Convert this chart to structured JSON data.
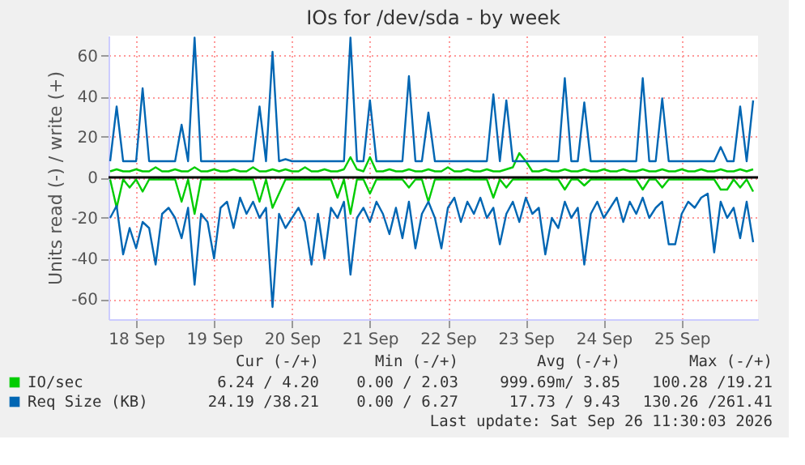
{
  "chart_data": {
    "type": "line",
    "title": "IOs for /dev/sda - by week",
    "ylabel": "Units read (-) / write (+)",
    "x": [
      "2026-09-18T04:00",
      "2026-09-18T06:00",
      "2026-09-18T08:00",
      "2026-09-18T10:00",
      "2026-09-18T12:00",
      "2026-09-18T14:00",
      "2026-09-18T16:00",
      "2026-09-18T18:00",
      "2026-09-18T20:00",
      "2026-09-18T22:00",
      "2026-09-19T00:00",
      "2026-09-19T02:00",
      "2026-09-19T04:00",
      "2026-09-19T06:00",
      "2026-09-19T08:00",
      "2026-09-19T10:00",
      "2026-09-19T12:00",
      "2026-09-19T14:00",
      "2026-09-19T16:00",
      "2026-09-19T18:00",
      "2026-09-19T20:00",
      "2026-09-19T22:00",
      "2026-09-20T00:00",
      "2026-09-20T02:00",
      "2026-09-20T04:00",
      "2026-09-20T06:00",
      "2026-09-20T08:00",
      "2026-09-20T10:00",
      "2026-09-20T12:00",
      "2026-09-20T14:00",
      "2026-09-20T16:00",
      "2026-09-20T18:00",
      "2026-09-20T20:00",
      "2026-09-20T22:00",
      "2026-09-21T00:00",
      "2026-09-21T02:00",
      "2026-09-21T04:00",
      "2026-09-21T06:00",
      "2026-09-21T08:00",
      "2026-09-21T10:00",
      "2026-09-21T12:00",
      "2026-09-21T14:00",
      "2026-09-21T16:00",
      "2026-09-21T18:00",
      "2026-09-21T20:00",
      "2026-09-21T22:00",
      "2026-09-22T00:00",
      "2026-09-22T02:00",
      "2026-09-22T04:00",
      "2026-09-22T06:00",
      "2026-09-22T08:00",
      "2026-09-22T10:00",
      "2026-09-22T12:00",
      "2026-09-22T14:00",
      "2026-09-22T16:00",
      "2026-09-22T18:00",
      "2026-09-22T20:00",
      "2026-09-22T22:00",
      "2026-09-23T00:00",
      "2026-09-23T02:00",
      "2026-09-23T04:00",
      "2026-09-23T06:00",
      "2026-09-23T08:00",
      "2026-09-23T10:00",
      "2026-09-23T12:00",
      "2026-09-23T14:00",
      "2026-09-23T16:00",
      "2026-09-23T18:00",
      "2026-09-23T20:00",
      "2026-09-23T22:00",
      "2026-09-24T00:00",
      "2026-09-24T02:00",
      "2026-09-24T04:00",
      "2026-09-24T06:00",
      "2026-09-24T08:00",
      "2026-09-24T10:00",
      "2026-09-24T12:00",
      "2026-09-24T14:00",
      "2026-09-24T16:00",
      "2026-09-24T18:00",
      "2026-09-24T20:00",
      "2026-09-24T22:00",
      "2026-09-25T00:00",
      "2026-09-25T02:00",
      "2026-09-25T04:00",
      "2026-09-25T06:00",
      "2026-09-25T08:00",
      "2026-09-25T10:00",
      "2026-09-25T12:00",
      "2026-09-25T14:00",
      "2026-09-25T16:00",
      "2026-09-25T18:00",
      "2026-09-25T20:00",
      "2026-09-25T22:00",
      "2026-09-26T00:00",
      "2026-09-26T02:00",
      "2026-09-26T04:00",
      "2026-09-26T06:00",
      "2026-09-26T08:00",
      "2026-09-26T10:00"
    ],
    "xlim": [
      "2026-09-18T03:30",
      "2026-09-26T11:30"
    ],
    "xticks": [
      {
        "value": "2026-09-18T12:00",
        "label": "18 Sep"
      },
      {
        "value": "2026-09-19T12:00",
        "label": "19 Sep"
      },
      {
        "value": "2026-09-20T12:00",
        "label": "20 Sep"
      },
      {
        "value": "2026-09-21T12:00",
        "label": "21 Sep"
      },
      {
        "value": "2026-09-22T12:00",
        "label": "22 Sep"
      },
      {
        "value": "2026-09-23T12:00",
        "label": "23 Sep"
      },
      {
        "value": "2026-09-24T12:00",
        "label": "24 Sep"
      },
      {
        "value": "2026-09-25T12:00",
        "label": "25 Sep"
      }
    ],
    "ylim": [
      -70,
      70
    ],
    "yticks": [
      -60,
      -40,
      -20,
      0,
      20,
      40,
      60
    ],
    "grid": true,
    "legend": "bottom",
    "line_style": "solid",
    "marker": "none",
    "ref_lines": [
      {
        "axis": "y",
        "value": 0,
        "color": "#000000"
      }
    ],
    "series": [
      {
        "name": "IO/sec",
        "color": "#00cc00",
        "values": [
          3,
          4,
          3,
          3,
          4,
          3,
          3,
          5,
          3,
          3,
          4,
          3,
          3,
          5,
          3,
          3,
          4,
          3,
          3,
          4,
          3,
          3,
          5,
          3,
          3,
          4,
          3,
          4,
          3,
          3,
          5,
          3,
          3,
          4,
          3,
          3,
          4,
          10,
          4,
          3,
          10,
          3,
          3,
          4,
          3,
          3,
          4,
          3,
          3,
          4,
          3,
          3,
          5,
          3,
          3,
          4,
          3,
          3,
          4,
          3,
          3,
          4,
          5,
          12,
          8,
          3,
          3,
          4,
          3,
          3,
          4,
          3,
          3,
          4,
          3,
          3,
          4,
          3,
          3,
          4,
          3,
          3,
          4,
          3,
          3,
          4,
          3,
          3,
          4,
          3,
          3,
          4,
          3,
          3,
          4,
          3,
          3,
          4,
          3,
          4
        ]
      },
      {
        "color": "#00cc00",
        "values": [
          -1,
          -15,
          -1,
          -5,
          -1,
          -7,
          -1,
          -1,
          -1,
          -1,
          -1,
          -12,
          -1,
          -18,
          -1,
          -1,
          -1,
          -1,
          -1,
          -1,
          -1,
          -1,
          -1,
          -12,
          -1,
          -15,
          -8,
          -1,
          -1,
          -1,
          -1,
          -1,
          -1,
          -1,
          -1,
          -10,
          -1,
          -18,
          -1,
          -1,
          -8,
          -1,
          -1,
          -1,
          -1,
          -1,
          -5,
          -1,
          -1,
          -12,
          -1,
          -1,
          -1,
          -1,
          -1,
          -1,
          -1,
          -1,
          -1,
          -10,
          -1,
          -5,
          -1,
          -1,
          -1,
          -1,
          -1,
          -1,
          -1,
          -1,
          -6,
          -1,
          -1,
          -4,
          -1,
          -1,
          -1,
          -1,
          -1,
          -1,
          -1,
          -1,
          -6,
          -1,
          -1,
          -5,
          -1,
          -1,
          -1,
          -1,
          -1,
          -1,
          -1,
          -1,
          -6,
          -6,
          -1,
          -5,
          -1,
          -7
        ]
      },
      {
        "name": "Req Size (KB)",
        "color": "#0066b3",
        "values": [
          8,
          35,
          8,
          8,
          8,
          44,
          8,
          8,
          8,
          8,
          8,
          26,
          8,
          69,
          8,
          8,
          8,
          8,
          8,
          8,
          8,
          8,
          8,
          35,
          8,
          62,
          8,
          9,
          8,
          8,
          8,
          8,
          8,
          8,
          8,
          8,
          8,
          69,
          8,
          8,
          38,
          8,
          8,
          8,
          8,
          8,
          50,
          8,
          8,
          32,
          8,
          8,
          8,
          8,
          8,
          8,
          8,
          8,
          8,
          41,
          8,
          38,
          8,
          8,
          8,
          8,
          8,
          8,
          8,
          8,
          49,
          8,
          8,
          37,
          8,
          8,
          8,
          8,
          8,
          8,
          8,
          8,
          49,
          8,
          8,
          39,
          8,
          8,
          8,
          8,
          8,
          8,
          8,
          8,
          15,
          8,
          8,
          35,
          8,
          38
        ]
      },
      {
        "color": "#0066b3",
        "values": [
          -20,
          -14,
          -38,
          -25,
          -35,
          -22,
          -25,
          -43,
          -18,
          -15,
          -20,
          -30,
          -15,
          -53,
          -18,
          -22,
          -40,
          -15,
          -12,
          -25,
          -10,
          -18,
          -12,
          -20,
          -15,
          -64,
          -18,
          -25,
          -20,
          -15,
          -22,
          -43,
          -18,
          -40,
          -15,
          -20,
          -12,
          -48,
          -20,
          -15,
          -22,
          -12,
          -18,
          -28,
          -15,
          -30,
          -12,
          -35,
          -18,
          -12,
          -20,
          -35,
          -15,
          -10,
          -22,
          -12,
          -18,
          -10,
          -20,
          -15,
          -33,
          -18,
          -12,
          -22,
          -10,
          -18,
          -15,
          -38,
          -20,
          -25,
          -12,
          -20,
          -15,
          -43,
          -18,
          -12,
          -20,
          -15,
          -10,
          -22,
          -12,
          -18,
          -10,
          -20,
          -15,
          -12,
          -33,
          -33,
          -18,
          -12,
          -15,
          -10,
          -8,
          -37,
          -12,
          -20,
          -15,
          -30,
          -12,
          -32
        ]
      }
    ],
    "annotations": [
      "Cur (-/+)",
      "Min (-/+)",
      "Avg (-/+)",
      "Max (-/+)",
      "6.24 / 4.20",
      "0.00 / 2.03",
      "999.69m/ 3.85",
      "100.28 /19.21",
      "24.19 /38.21",
      "0.00 / 6.27",
      "17.73 / 9.43",
      "130.26 /261.41",
      "Last update: Sat Sep 26 11:30:03 2026"
    ]
  }
}
